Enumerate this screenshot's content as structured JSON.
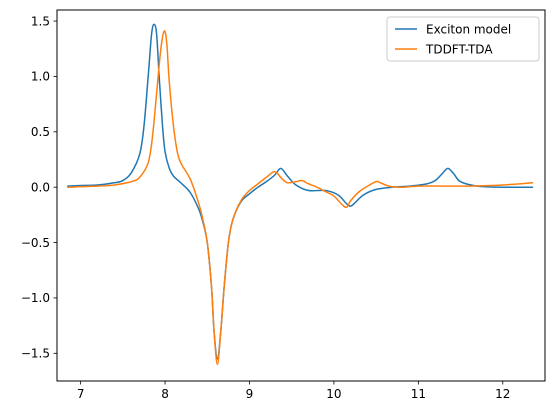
{
  "chart_data": {
    "type": "line",
    "title": "",
    "xlabel": "",
    "ylabel": "",
    "xlim": [
      6.72,
      12.5
    ],
    "ylim": [
      -1.75,
      1.6
    ],
    "xticks": [
      7,
      8,
      9,
      10,
      11,
      12
    ],
    "yticks": [
      1.5,
      1.0,
      0.5,
      0.0,
      -0.5,
      -1.0,
      -1.5
    ],
    "xtick_labels": [
      "7",
      "8",
      "9",
      "10",
      "11",
      "12"
    ],
    "ytick_labels": [
      "1.5",
      "1.0",
      "0.5",
      "0.0",
      "−0.5",
      "−1.0",
      "−1.5"
    ],
    "grid": false,
    "legend_position": "top-right",
    "series": [
      {
        "name": "Exciton model",
        "color": "#1f77b4",
        "x": [
          6.85,
          7.0,
          7.2,
          7.4,
          7.5,
          7.6,
          7.7,
          7.75,
          7.8,
          7.84,
          7.87,
          7.9,
          7.93,
          7.97,
          8.0,
          8.05,
          8.1,
          8.2,
          8.3,
          8.4,
          8.45,
          8.5,
          8.55,
          8.58,
          8.62,
          8.66,
          8.7,
          8.75,
          8.8,
          8.9,
          9.0,
          9.1,
          9.2,
          9.3,
          9.37,
          9.45,
          9.55,
          9.7,
          9.9,
          10.05,
          10.15,
          10.2,
          10.25,
          10.35,
          10.5,
          10.7,
          10.9,
          11.1,
          11.2,
          11.28,
          11.35,
          11.42,
          11.5,
          11.7,
          12.0,
          12.35
        ],
        "y": [
          0.01,
          0.015,
          0.02,
          0.04,
          0.06,
          0.13,
          0.3,
          0.55,
          1.0,
          1.38,
          1.47,
          1.38,
          1.0,
          0.55,
          0.32,
          0.17,
          0.1,
          0.03,
          -0.05,
          -0.2,
          -0.32,
          -0.5,
          -0.9,
          -1.3,
          -1.55,
          -1.3,
          -0.9,
          -0.5,
          -0.3,
          -0.13,
          -0.06,
          0.0,
          0.05,
          0.11,
          0.17,
          0.1,
          0.02,
          -0.03,
          -0.03,
          -0.07,
          -0.15,
          -0.17,
          -0.14,
          -0.07,
          -0.02,
          0.0,
          0.01,
          0.03,
          0.06,
          0.12,
          0.17,
          0.12,
          0.05,
          0.01,
          0.0,
          0.0
        ]
      },
      {
        "name": "TDDFT-TDA",
        "color": "#ff7f0e",
        "x": [
          6.85,
          7.0,
          7.2,
          7.4,
          7.6,
          7.7,
          7.8,
          7.85,
          7.9,
          7.95,
          7.99,
          8.02,
          8.05,
          8.1,
          8.15,
          8.2,
          8.3,
          8.4,
          8.45,
          8.5,
          8.55,
          8.58,
          8.62,
          8.66,
          8.7,
          8.75,
          8.8,
          8.9,
          9.0,
          9.1,
          9.2,
          9.3,
          9.38,
          9.45,
          9.55,
          9.62,
          9.7,
          9.8,
          9.9,
          10.0,
          10.1,
          10.15,
          10.2,
          10.3,
          10.4,
          10.5,
          10.55,
          10.65,
          10.8,
          11.0,
          11.3,
          11.6,
          12.0,
          12.35
        ],
        "y": [
          0.0,
          0.005,
          0.01,
          0.02,
          0.05,
          0.09,
          0.22,
          0.45,
          0.85,
          1.25,
          1.41,
          1.3,
          0.95,
          0.55,
          0.3,
          0.2,
          0.07,
          -0.15,
          -0.3,
          -0.5,
          -0.9,
          -1.3,
          -1.6,
          -1.3,
          -0.9,
          -0.5,
          -0.3,
          -0.12,
          -0.03,
          0.03,
          0.09,
          0.14,
          0.08,
          0.04,
          0.05,
          0.06,
          0.03,
          0.0,
          -0.04,
          -0.08,
          -0.16,
          -0.18,
          -0.12,
          -0.04,
          0.01,
          0.05,
          0.04,
          0.01,
          0.0,
          0.01,
          0.01,
          0.01,
          0.02,
          0.04
        ]
      }
    ]
  }
}
